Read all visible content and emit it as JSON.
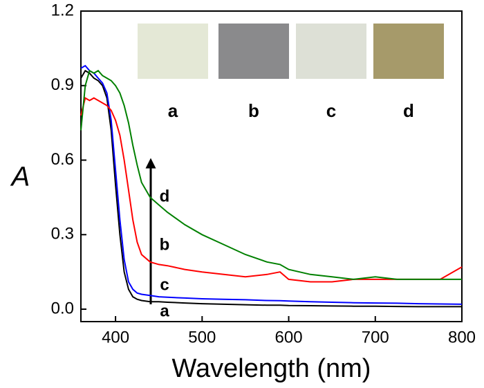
{
  "chart_data": {
    "type": "line",
    "x_label": "Wavelength (nm)",
    "y_label": "A",
    "x": [
      360,
      365,
      370,
      375,
      380,
      385,
      390,
      395,
      400,
      405,
      410,
      415,
      420,
      425,
      430,
      440,
      450,
      460,
      480,
      500,
      525,
      550,
      575,
      590,
      600,
      625,
      650,
      675,
      700,
      725,
      750,
      775,
      800
    ],
    "series": [
      {
        "name": "a",
        "color": "#000000",
        "values": [
          0.93,
          0.96,
          0.95,
          0.93,
          0.92,
          0.9,
          0.85,
          0.72,
          0.5,
          0.3,
          0.15,
          0.08,
          0.05,
          0.04,
          0.035,
          0.03,
          0.03,
          0.028,
          0.025,
          0.022,
          0.02,
          0.018,
          0.016,
          0.016,
          0.015,
          0.014,
          0.013,
          0.012,
          0.012,
          0.011,
          0.01,
          0.01,
          0.01
        ]
      },
      {
        "name": "c",
        "color": "#0000ff",
        "values": [
          0.97,
          0.98,
          0.96,
          0.95,
          0.93,
          0.91,
          0.87,
          0.76,
          0.56,
          0.36,
          0.2,
          0.11,
          0.08,
          0.065,
          0.06,
          0.055,
          0.05,
          0.048,
          0.045,
          0.042,
          0.04,
          0.038,
          0.035,
          0.034,
          0.033,
          0.03,
          0.028,
          0.026,
          0.025,
          0.024,
          0.022,
          0.021,
          0.02
        ]
      },
      {
        "name": "b",
        "color": "#ff0000",
        "values": [
          0.78,
          0.85,
          0.84,
          0.85,
          0.84,
          0.83,
          0.82,
          0.8,
          0.76,
          0.7,
          0.6,
          0.48,
          0.36,
          0.27,
          0.22,
          0.19,
          0.18,
          0.175,
          0.16,
          0.15,
          0.14,
          0.13,
          0.14,
          0.15,
          0.12,
          0.11,
          0.11,
          0.12,
          0.12,
          0.12,
          0.12,
          0.12,
          0.17
        ]
      },
      {
        "name": "d",
        "color": "#008000",
        "values": [
          0.72,
          0.9,
          0.96,
          0.95,
          0.96,
          0.94,
          0.93,
          0.92,
          0.9,
          0.87,
          0.82,
          0.75,
          0.66,
          0.58,
          0.51,
          0.45,
          0.42,
          0.39,
          0.34,
          0.3,
          0.26,
          0.22,
          0.19,
          0.18,
          0.16,
          0.14,
          0.13,
          0.12,
          0.13,
          0.12,
          0.12,
          0.12,
          0.12
        ]
      }
    ],
    "xlim": [
      360,
      800
    ],
    "xticks": [
      400,
      500,
      600,
      700,
      800
    ],
    "ylim": [
      -0.05,
      1.2
    ],
    "yticks": [
      {
        "value": 0,
        "label": "0.0"
      },
      0.3,
      0.6,
      0.9,
      1.2
    ],
    "curve_labels": [
      "d",
      "b",
      "c",
      "a"
    ],
    "inset_labels": [
      "a",
      "b",
      "c",
      "d"
    ]
  }
}
